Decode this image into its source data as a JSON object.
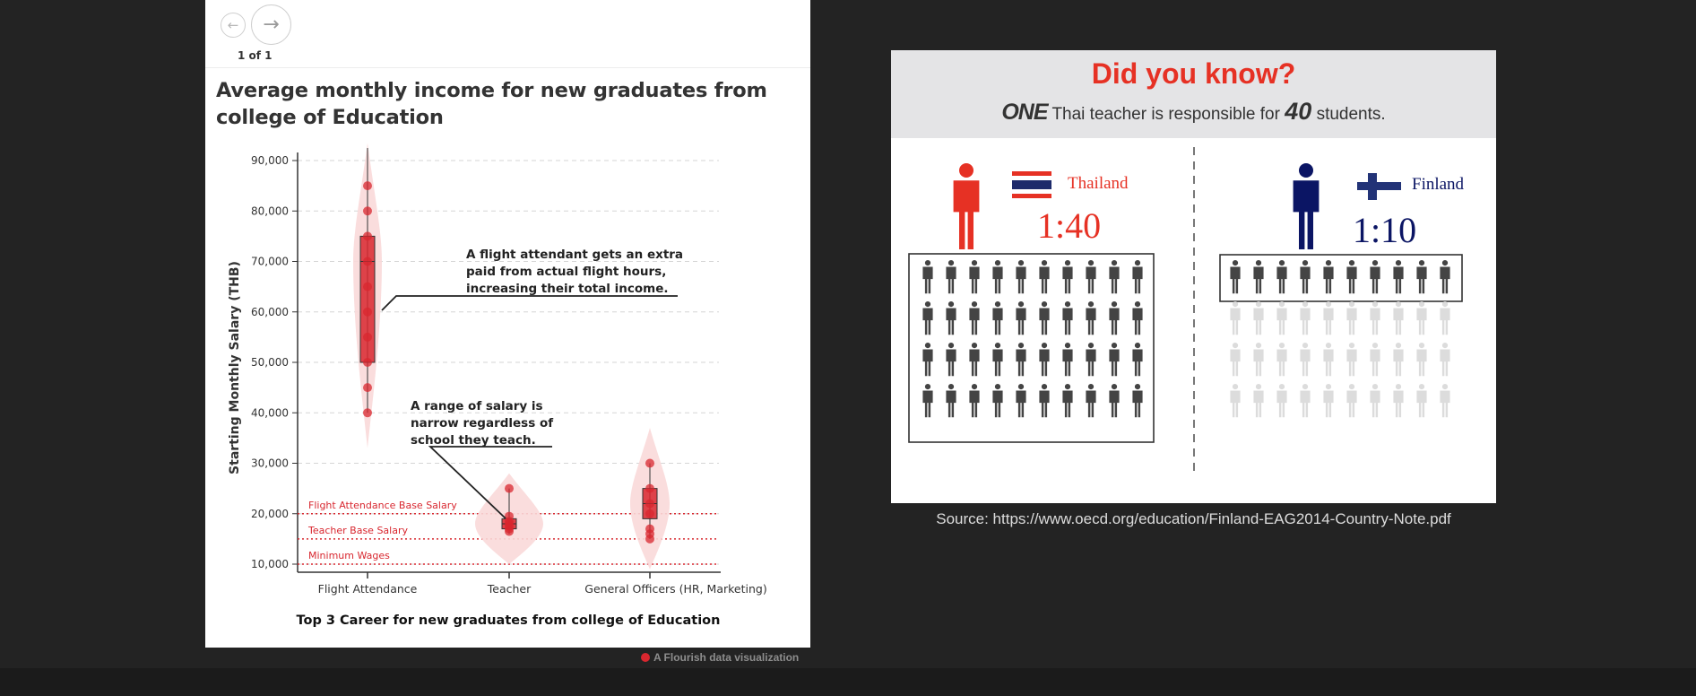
{
  "navigation": {
    "prev_icon": "arrow-left-icon",
    "next_icon": "arrow-right-icon",
    "prev_glyph": "←",
    "next_glyph": "→",
    "page_indicator": "1 of 1"
  },
  "chart_data": {
    "type": "violin-box",
    "title": "Average monthly income for new graduates from college of Education",
    "xlabel": "Top 3 Career for new graduates from college of Education",
    "ylabel": "Starting Monthly Salary (THB)",
    "ylim": [
      8000,
      93000
    ],
    "yticks": [
      10000,
      20000,
      30000,
      40000,
      50000,
      60000,
      70000,
      80000,
      90000
    ],
    "ytick_labels": [
      "10,000",
      "20,000",
      "30,000",
      "40,000",
      "50,000",
      "60,000",
      "70,000",
      "80,000",
      "90,000"
    ],
    "grid": true,
    "accent_color": "#d8272f",
    "violin_color": "#f9d9d9",
    "categories": [
      "Flight Attendance",
      "Teacher",
      "General Officers (HR, Marketing)"
    ],
    "series": [
      {
        "category": "Flight Attendance",
        "box": {
          "min": 40000,
          "q1": 50000,
          "median": 70000,
          "q3": 75000,
          "max": 85000
        },
        "points": [
          85000,
          80000,
          75000,
          70000,
          65000,
          60000,
          55000,
          50000,
          45000,
          40000
        ],
        "violin_range": [
          33000,
          100000
        ]
      },
      {
        "category": "Teacher",
        "box": {
          "min": 16000,
          "q1": 17000,
          "median": 18000,
          "q3": 19000,
          "max": 25000
        },
        "points": [
          25000,
          19500,
          18500,
          18000,
          17500,
          17000,
          16500
        ],
        "violin_range": [
          10000,
          28000
        ]
      },
      {
        "category": "General Officers (HR, Marketing)",
        "box": {
          "min": 15000,
          "q1": 19000,
          "median": 22000,
          "q3": 25000,
          "max": 30000
        },
        "points": [
          30000,
          25000,
          22000,
          20000,
          17000,
          16000,
          15000
        ],
        "violin_range": [
          9000,
          37000
        ]
      }
    ],
    "reference_lines": [
      {
        "label": "Flight Attendance Base Salary",
        "value": 20000
      },
      {
        "label": "Teacher Base Salary",
        "value": 15000
      },
      {
        "label": "Minimum Wages",
        "value": 10000
      }
    ],
    "annotations": [
      {
        "lines": [
          "A flight attendant gets an extra",
          "paid from actual flight hours,",
          "increasing their total income."
        ],
        "target_category": "Flight Attendance",
        "target_value": 60000
      },
      {
        "lines": [
          "A range of salary is",
          "narrow regardless of",
          "school they teach."
        ],
        "target_category": "Teacher",
        "target_value": 18000
      }
    ]
  },
  "credit": {
    "icon": "flourish-logo-icon",
    "text": "A Flourish data visualization"
  },
  "infographic": {
    "headline": "Did you know?",
    "sub_one": "ONE",
    "sub_mid": "Thai teacher is responsible for",
    "sub_num": "40",
    "sub_end": "students.",
    "headline_color": "#e63124",
    "thailand": {
      "name": "Thailand",
      "ratio": "1:40",
      "color": "#e63124",
      "students": 40
    },
    "finland": {
      "name": "Finland",
      "ratio": "1:10",
      "color": "#0b1564",
      "students": 10
    },
    "source": "Source: https://www.oecd.org/education/Finland-EAG2014-Country-Note.pdf"
  }
}
